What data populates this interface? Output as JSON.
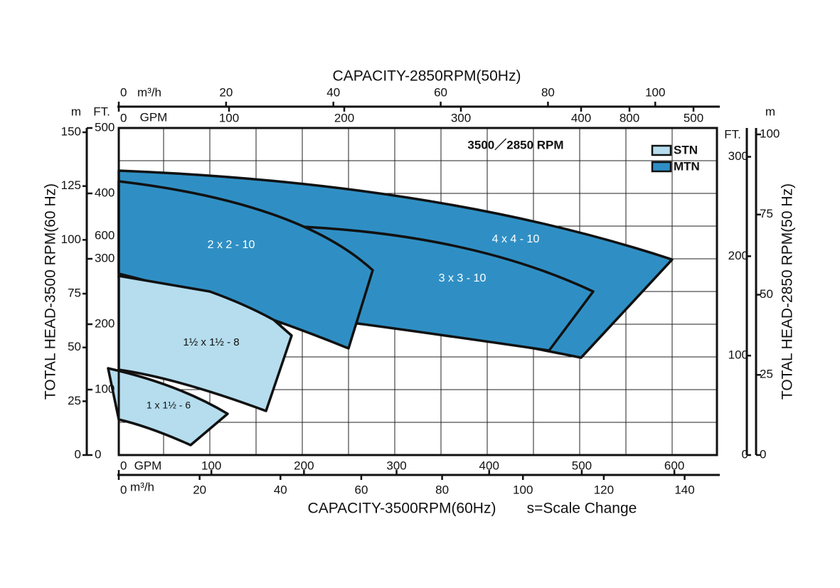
{
  "top_title": "CAPACITY-2850RPM(50Hz)",
  "bottom_title": "CAPACITY-3500RPM(60Hz)",
  "scale_note": "s=Scale Change",
  "left_title": "TOTAL HEAD-3500 RPM(60 Hz)",
  "right_title": "TOTAL HEAD-2850 RPM(50 Hz)",
  "rpm_note": "3500／2850 RPM",
  "legend": [
    {
      "name": "STN",
      "color": "#b5ddee"
    },
    {
      "name": "MTN",
      "color": "#2f8fc4"
    }
  ],
  "regions": [
    {
      "label": "4 x 4 - 10",
      "color": "#2f8fc4"
    },
    {
      "label": "3 x 3 - 10",
      "color": "#2f8fc4"
    },
    {
      "label": "2 x 2 - 10",
      "color": "#2f8fc4"
    },
    {
      "label": "1½ x 1½ - 8",
      "color": "#b5ddee"
    },
    {
      "label": "1 x 1½ - 6",
      "color": "#b5ddee"
    }
  ],
  "axes": {
    "top_m3h": {
      "unit": "m³/h",
      "lim": [
        0,
        111.5
      ],
      "ticks": [
        0,
        20,
        40,
        60,
        80,
        100
      ]
    },
    "top_gpm": {
      "unit": "GPM",
      "ticks": [
        0,
        100,
        200,
        300,
        400,
        800,
        500
      ]
    },
    "bottom_gpm": {
      "unit": "GPM",
      "lim": [
        0,
        646
      ],
      "ticks": [
        0,
        100,
        200,
        300,
        400,
        500,
        600
      ]
    },
    "bottom_m3h": {
      "unit": "m³/h",
      "lim": [
        0,
        148
      ],
      "ticks": [
        0,
        20,
        40,
        60,
        80,
        100,
        120,
        140
      ]
    },
    "left_m": {
      "unit": "m",
      "lim": [
        0,
        152
      ],
      "ticks": [
        0,
        25,
        50,
        75,
        100,
        125,
        150
      ]
    },
    "left_ft": {
      "unit": "FT.",
      "lim": [
        0,
        500
      ],
      "ticks": [
        0,
        100,
        200,
        300,
        400,
        500
      ],
      "scale_change": 600
    },
    "right_ft": {
      "unit": "FT.",
      "lim": [
        0,
        329
      ],
      "ticks": [
        0,
        100,
        200,
        300
      ]
    },
    "right_m": {
      "unit": "m",
      "lim": [
        0,
        102
      ],
      "ticks": [
        0,
        25,
        50,
        75,
        100
      ]
    }
  }
}
